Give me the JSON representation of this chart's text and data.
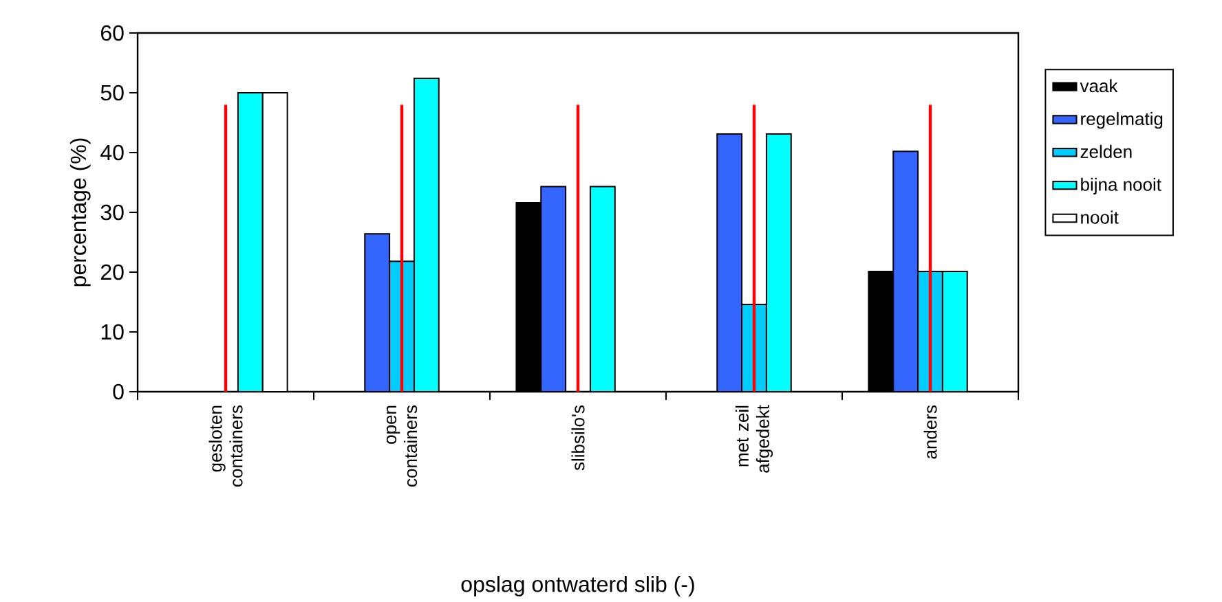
{
  "chart_data": {
    "type": "bar",
    "xlabel": "opslag ontwaterd slib (-)",
    "ylabel": "percentage (%)",
    "categories": [
      "gesloten containers",
      "open containers",
      "slibsilo's",
      "met zeil afgedekt",
      "anders"
    ],
    "series": [
      {
        "name": "vaak",
        "color": "#000000",
        "values": [
          0,
          0,
          31.6,
          0,
          20.1
        ]
      },
      {
        "name": "regelmatig",
        "color": "#3366ff",
        "values": [
          0,
          26.4,
          34.3,
          43.1,
          40.2
        ]
      },
      {
        "name": "zelden",
        "color": "#00ccff",
        "values": [
          0,
          21.8,
          0,
          14.6,
          20.1
        ]
      },
      {
        "name": "bijna nooit",
        "color": "#00ffff",
        "values": [
          50,
          52.4,
          34.3,
          43.1,
          20.1
        ]
      },
      {
        "name": "nooit",
        "color": "#ffffff",
        "values": [
          50,
          0,
          0,
          0,
          0
        ]
      },
      {
        "type": "bar",
        "color": "#ff0000",
        "values": [
          48,
          48,
          48,
          48,
          48
        ]
      }
    ],
    "ylim": [
      0,
      60
    ],
    "yticks": [
      0,
      10,
      20,
      30,
      40,
      50,
      60
    ],
    "legend": "right",
    "grid": false
  }
}
